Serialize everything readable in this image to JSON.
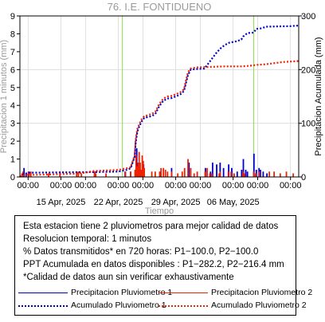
{
  "chart_data": {
    "type": "line",
    "title": "76. I.E. FONTIDUENO",
    "xlabel": "Tiempo",
    "ylabel_left": "Precipitacion 1 minutos (mm)",
    "ylabel_right": "Precipitacion Acumulada (mm)",
    "x_range": [
      "2025-04-10",
      "2025-05-14"
    ],
    "xticks": [
      "2025-04-11",
      "2025-04-15",
      "2025-04-18",
      "2025-04-22",
      "2025-04-25",
      "2025-04-29",
      "2025-05-02",
      "2025-05-06",
      "2025-05-09",
      "2025-05-13"
    ],
    "xtick_labels_top": [
      "00:00",
      "00:00",
      "00:00",
      "00:00",
      "00:00",
      "00:00",
      "00:00",
      "00:00",
      "00:00",
      "00:00"
    ],
    "xtick_labels_bottom": [
      "",
      "15 Apr, 2025",
      "",
      "22 Apr, 2025",
      "",
      "29 Apr, 2025",
      "",
      "06 May, 2025",
      "",
      ""
    ],
    "ylim_left": [
      0,
      9
    ],
    "yticks_left": [
      0,
      1,
      2,
      3,
      4,
      5,
      6,
      7,
      8,
      9
    ],
    "ylim_right": [
      0,
      300
    ],
    "yticks_right": [
      0,
      100,
      200,
      300
    ],
    "vlines": [
      "2025-04-22T12:00",
      "2025-05-08T12:00"
    ],
    "grid": true,
    "series": [
      {
        "name": "Precipitacion Pluviometro 1",
        "axis": "left",
        "style": "bars",
        "color": "#0000cc",
        "points": [
          [
            "2025-04-10T12:00",
            0.5
          ],
          [
            "2025-04-10T18:00",
            0.2
          ],
          [
            "2025-04-11T01:00",
            0.3
          ],
          [
            "2025-04-19T03:00",
            0.3
          ],
          [
            "2025-04-22T20:00",
            0.3
          ],
          [
            "2025-04-23T12:00",
            0.3
          ],
          [
            "2025-04-24T06:00",
            1.6
          ],
          [
            "2025-04-25T02:00",
            0.7
          ],
          [
            "2025-04-27T03:00",
            0.3
          ],
          [
            "2025-04-28T12:00",
            0.5
          ],
          [
            "2025-04-30T15:00",
            0.8
          ],
          [
            "2025-05-02T15:00",
            0.5
          ],
          [
            "2025-05-03T06:00",
            0.3
          ],
          [
            "2025-05-03T12:00",
            0.8
          ],
          [
            "2025-05-04T00:00",
            0.7
          ],
          [
            "2025-05-04T10:00",
            0.8
          ],
          [
            "2025-05-04T20:00",
            0.5
          ],
          [
            "2025-05-05T11:00",
            0.7
          ],
          [
            "2025-05-05T20:00",
            0.5
          ],
          [
            "2025-05-06T12:00",
            0.3
          ],
          [
            "2025-05-07T01:00",
            0.4
          ],
          [
            "2025-05-07T06:00",
            1.0
          ],
          [
            "2025-05-07T13:00",
            0.4
          ],
          [
            "2025-05-07T18:00",
            0.3
          ],
          [
            "2025-05-08T13:00",
            1.3
          ],
          [
            "2025-05-08T20:00",
            0.4
          ],
          [
            "2025-05-09T04:00",
            0.5
          ],
          [
            "2025-05-09T08:00",
            0.4
          ],
          [
            "2025-05-09T16:00",
            0.3
          ],
          [
            "2025-05-10T03:00",
            0.2
          ]
        ]
      },
      {
        "name": "Precipitacion Pluviometro 2",
        "axis": "left",
        "style": "bars",
        "color": "#ee2200",
        "points": [
          [
            "2025-04-10T06:00",
            0.2
          ],
          [
            "2025-04-10T09:00",
            0.3
          ],
          [
            "2025-04-11T02:00",
            0.3
          ],
          [
            "2025-04-11T08:00",
            0.3
          ],
          [
            "2025-04-13T12:00",
            0.2
          ],
          [
            "2025-04-14T21:00",
            0.3
          ],
          [
            "2025-04-16T22:00",
            0.3
          ],
          [
            "2025-04-17T03:00",
            0.3
          ],
          [
            "2025-04-17T12:00",
            0.2
          ],
          [
            "2025-04-19T02:00",
            0.3
          ],
          [
            "2025-04-19T06:00",
            0.2
          ],
          [
            "2025-04-20T12:00",
            0.2
          ],
          [
            "2025-04-22T21:00",
            0.3
          ],
          [
            "2025-04-23T12:00",
            0.3
          ],
          [
            "2025-04-24T01:00",
            0.4
          ],
          [
            "2025-04-24T04:00",
            1.2
          ],
          [
            "2025-04-24T07:00",
            0.6
          ],
          [
            "2025-04-24T10:00",
            0.8
          ],
          [
            "2025-04-24T13:00",
            1.4
          ],
          [
            "2025-04-24T16:00",
            0.8
          ],
          [
            "2025-04-24T19:00",
            0.4
          ],
          [
            "2025-04-24T22:00",
            1.2
          ],
          [
            "2025-04-25T01:00",
            0.9
          ],
          [
            "2025-04-25T04:00",
            0.5
          ],
          [
            "2025-04-26T02:00",
            0.3
          ],
          [
            "2025-04-26T12:00",
            0.3
          ],
          [
            "2025-04-27T01:00",
            0.3
          ],
          [
            "2025-04-27T05:00",
            0.5
          ],
          [
            "2025-04-27T12:00",
            0.5
          ],
          [
            "2025-04-27T18:00",
            0.4
          ],
          [
            "2025-04-28T00:00",
            0.3
          ],
          [
            "2025-04-28T12:00",
            0.3
          ],
          [
            "2025-04-29T06:00",
            0.2
          ],
          [
            "2025-04-29T19:00",
            0.3
          ],
          [
            "2025-04-30T02:00",
            0.5
          ],
          [
            "2025-04-30T12:00",
            1.0
          ],
          [
            "2025-04-30T20:00",
            0.5
          ],
          [
            "2025-05-01T06:00",
            0.2
          ],
          [
            "2025-05-01T15:00",
            0.3
          ],
          [
            "2025-05-02T14:00",
            0.3
          ],
          [
            "2025-05-02T20:00",
            0.5
          ],
          [
            "2025-05-03T04:00",
            0.2
          ],
          [
            "2025-05-03T10:00",
            0.2
          ],
          [
            "2025-05-04T07:00",
            0.2
          ],
          [
            "2025-05-04T10:00",
            0.3
          ],
          [
            "2025-05-05T10:00",
            0.3
          ],
          [
            "2025-05-05T18:00",
            0.3
          ],
          [
            "2025-05-06T03:00",
            0.2
          ],
          [
            "2025-05-07T05:00",
            0.3
          ],
          [
            "2025-05-07T10:00",
            0.2
          ],
          [
            "2025-05-08T12:00",
            0.3
          ],
          [
            "2025-05-08T18:00",
            0.2
          ],
          [
            "2025-05-09T05:00",
            0.3
          ],
          [
            "2025-05-10T10:00",
            0.3
          ],
          [
            "2025-05-11T00:00",
            0.3
          ],
          [
            "2025-05-11T18:00",
            0.2
          ],
          [
            "2025-05-12T12:00",
            0.3
          ],
          [
            "2025-05-13T08:00",
            0.2
          ]
        ]
      },
      {
        "name": "Acumulado Pluviometro 1",
        "axis": "right",
        "style": "dotted",
        "color": "#0000cc",
        "points": [
          [
            "2025-04-10T00:00",
            0
          ],
          [
            "2025-04-10T06:00",
            4
          ],
          [
            "2025-04-10T16:00",
            6
          ],
          [
            "2025-04-11T02:00",
            8
          ],
          [
            "2025-04-12T00:00",
            8
          ],
          [
            "2025-04-19T00:00",
            9
          ],
          [
            "2025-04-22T00:00",
            10
          ],
          [
            "2025-04-23T00:00",
            13
          ],
          [
            "2025-04-23T12:00",
            16
          ],
          [
            "2025-04-24T00:00",
            38
          ],
          [
            "2025-04-24T03:00",
            65
          ],
          [
            "2025-04-24T08:00",
            85
          ],
          [
            "2025-04-24T14:00",
            95
          ],
          [
            "2025-04-24T20:00",
            103
          ],
          [
            "2025-04-25T04:00",
            110
          ],
          [
            "2025-04-26T00:00",
            113
          ],
          [
            "2025-04-26T12:00",
            117
          ],
          [
            "2025-04-27T00:00",
            132
          ],
          [
            "2025-04-27T12:00",
            142
          ],
          [
            "2025-04-28T00:00",
            146
          ],
          [
            "2025-04-28T12:00",
            147
          ],
          [
            "2025-04-29T12:00",
            153
          ],
          [
            "2025-04-30T00:00",
            160
          ],
          [
            "2025-04-30T06:00",
            175
          ],
          [
            "2025-04-30T12:00",
            190
          ],
          [
            "2025-04-30T20:00",
            200
          ],
          [
            "2025-05-01T12:00",
            201
          ],
          [
            "2025-05-02T12:00",
            202
          ],
          [
            "2025-05-03T00:00",
            212
          ],
          [
            "2025-05-03T12:00",
            222
          ],
          [
            "2025-05-04T00:00",
            232
          ],
          [
            "2025-05-04T12:00",
            240
          ],
          [
            "2025-05-05T00:00",
            246
          ],
          [
            "2025-05-05T12:00",
            250
          ],
          [
            "2025-05-06T12:00",
            253
          ],
          [
            "2025-05-07T00:00",
            256
          ],
          [
            "2025-05-07T06:00",
            262
          ],
          [
            "2025-05-07T18:00",
            268
          ],
          [
            "2025-05-08T12:00",
            269
          ],
          [
            "2025-05-08T20:00",
            276
          ],
          [
            "2025-05-09T12:00",
            277
          ],
          [
            "2025-05-10T00:00",
            280
          ],
          [
            "2025-05-13T00:00",
            281
          ],
          [
            "2025-05-14T00:00",
            282
          ]
        ]
      },
      {
        "name": "Acumulado Pluviometro 2",
        "axis": "right",
        "style": "dotted",
        "color": "#ee2200",
        "points": [
          [
            "2025-04-10T00:00",
            0
          ],
          [
            "2025-04-10T06:00",
            3
          ],
          [
            "2025-04-11T00:00",
            4
          ],
          [
            "2025-04-12T00:00",
            4
          ],
          [
            "2025-04-14T12:00",
            5
          ],
          [
            "2025-04-16T12:00",
            6
          ],
          [
            "2025-04-18T00:00",
            8
          ],
          [
            "2025-04-19T00:00",
            11
          ],
          [
            "2025-04-22T00:00",
            13
          ],
          [
            "2025-04-23T00:00",
            16
          ],
          [
            "2025-04-23T12:00",
            18
          ],
          [
            "2025-04-24T00:00",
            40
          ],
          [
            "2025-04-24T03:00",
            70
          ],
          [
            "2025-04-24T08:00",
            90
          ],
          [
            "2025-04-24T14:00",
            99
          ],
          [
            "2025-04-24T20:00",
            107
          ],
          [
            "2025-04-25T04:00",
            113
          ],
          [
            "2025-04-26T00:00",
            117
          ],
          [
            "2025-04-26T12:00",
            121
          ],
          [
            "2025-04-27T00:00",
            136
          ],
          [
            "2025-04-27T12:00",
            146
          ],
          [
            "2025-04-28T00:00",
            150
          ],
          [
            "2025-04-28T12:00",
            151
          ],
          [
            "2025-04-29T12:00",
            157
          ],
          [
            "2025-04-30T00:00",
            163
          ],
          [
            "2025-04-30T06:00",
            180
          ],
          [
            "2025-04-30T12:00",
            195
          ],
          [
            "2025-04-30T20:00",
            202
          ],
          [
            "2025-05-01T12:00",
            204
          ],
          [
            "2025-05-03T00:00",
            205
          ],
          [
            "2025-05-05T00:00",
            206
          ],
          [
            "2025-05-07T00:00",
            206
          ],
          [
            "2025-05-08T00:00",
            207
          ],
          [
            "2025-05-09T00:00",
            209
          ],
          [
            "2025-05-10T00:00",
            210
          ],
          [
            "2025-05-11T12:00",
            213
          ],
          [
            "2025-05-12T00:00",
            214
          ],
          [
            "2025-05-14T00:00",
            216
          ]
        ]
      }
    ]
  },
  "info": {
    "line1": "Esta estacion tiene 2 pluviometros para mejor calidad de datos",
    "line2": "Resolucion temporal: 1 minutos",
    "line3": "% Datos transmitidos* en 720 horas: P1−100.0, P2−100.0",
    "line4": "PPT Acumulada en datos disponibles : P1−282.2, P2−216.4 mm",
    "line5": "*Calidad de datos aun sin verificar exhaustivamente"
  },
  "legend": {
    "p1_bars": "Precipitacion Pluviometro 1",
    "p2_bars": "Precipitacion Pluviometro 2",
    "p1_acc": "Acumulado Pluviometro 1",
    "p2_acc": "Acumulado Pluviometro 2"
  },
  "colors": {
    "p1": "#0000cc",
    "p2": "#ee2200",
    "vline": "#88dd44",
    "grid": "#d9d9d9",
    "title": "#9a9a9a",
    "axis_title": "#9a9a9a"
  }
}
